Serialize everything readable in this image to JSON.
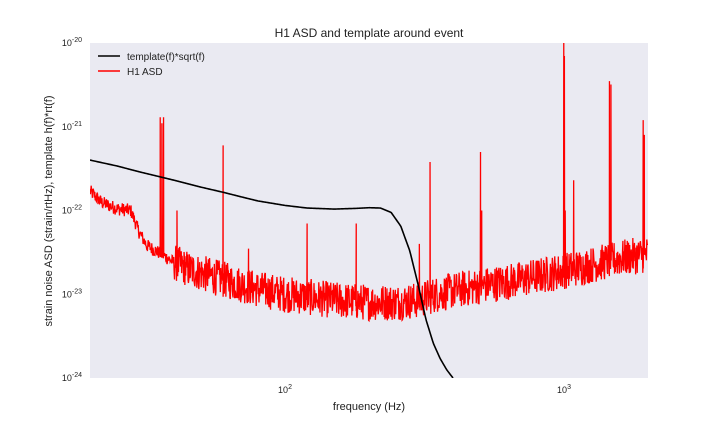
{
  "chart_data": {
    "type": "line",
    "title": "H1 ASD and template around event",
    "xlabel": "frequency (Hz)",
    "ylabel": "strain noise ASD (strain/rtHz), template h(f)*rt(f)",
    "xscale": "log",
    "yscale": "log",
    "xlim": [
      20,
      2000
    ],
    "ylim": [
      1e-24,
      1e-20
    ],
    "grid": false,
    "legend_position": "top-left",
    "background_color": "#eaeaf2",
    "x_ticks": [
      {
        "value": 100,
        "base": "10",
        "exp": "2"
      },
      {
        "value": 1000,
        "base": "10",
        "exp": "3"
      }
    ],
    "y_ticks": [
      {
        "value": 1e-20,
        "base": "10",
        "exp": "-20"
      },
      {
        "value": 1e-21,
        "base": "10",
        "exp": "-21"
      },
      {
        "value": 1e-22,
        "base": "10",
        "exp": "-22"
      },
      {
        "value": 1e-23,
        "base": "10",
        "exp": "-23"
      },
      {
        "value": 1e-24,
        "base": "10",
        "exp": "-24"
      }
    ],
    "series": [
      {
        "name": "template(f)*sqrt(f)",
        "color": "#000000",
        "x": [
          20,
          25,
          30,
          40,
          50,
          60,
          70,
          80,
          100,
          120,
          150,
          180,
          200,
          220,
          240,
          260,
          280,
          300,
          320,
          340,
          360,
          380,
          400
        ],
        "y": [
          4e-22,
          3.4e-22,
          2.9e-22,
          2.3e-22,
          1.9e-22,
          1.65e-22,
          1.45e-22,
          1.3e-22,
          1.15e-22,
          1.07e-22,
          1.04e-22,
          1.06e-22,
          1.08e-22,
          1.07e-22,
          9.5e-23,
          6.5e-23,
          3.3e-23,
          1.3e-23,
          5e-24,
          2.6e-24,
          1.7e-24,
          1.25e-24,
          1e-24
        ]
      },
      {
        "name": "H1 ASD",
        "color": "#ff0000",
        "baseline": {
          "x": [
            20,
            22,
            25,
            28,
            30,
            32,
            35,
            40,
            45,
            50,
            60,
            70,
            80,
            100,
            130,
            150,
            200,
            250,
            300,
            350,
            400,
            500,
            700,
            1000,
            1300,
            1600,
            2000
          ],
          "y": [
            1.7e-22,
            1.25e-22,
            1.05e-22,
            1e-22,
            5.5e-23,
            3.8e-23,
            3.2e-23,
            2.4e-23,
            2e-23,
            1.8e-23,
            1.5e-23,
            1.3e-23,
            1.15e-23,
            1e-23,
            9e-24,
            8.5e-24,
            8e-24,
            8e-24,
            8.5e-24,
            1e-23,
            1.1e-23,
            1.25e-23,
            1.5e-23,
            1.9e-23,
            2.3e-23,
            2.7e-23,
            3e-23
          ]
        },
        "peaks": [
          {
            "f": 35.7,
            "y": 1.3e-21
          },
          {
            "f": 36.2,
            "y": 1.1e-21
          },
          {
            "f": 36.7,
            "y": 1.3e-21
          },
          {
            "f": 41,
            "y": 1e-22
          },
          {
            "f": 60,
            "y": 6e-22
          },
          {
            "f": 74,
            "y": 3.5e-23
          },
          {
            "f": 120,
            "y": 7e-23
          },
          {
            "f": 180,
            "y": 7e-23
          },
          {
            "f": 303,
            "y": 4e-23
          },
          {
            "f": 331,
            "y": 3.8e-22
          },
          {
            "f": 502,
            "y": 5e-22
          },
          {
            "f": 507,
            "y": 1e-22
          },
          {
            "f": 998,
            "y": 1e-20
          },
          {
            "f": 1003,
            "y": 7e-21
          },
          {
            "f": 1010,
            "y": 1e-22
          },
          {
            "f": 1083,
            "y": 2.3e-22
          },
          {
            "f": 1455,
            "y": 3.5e-21
          },
          {
            "f": 1473,
            "y": 3.2e-21
          },
          {
            "f": 1922,
            "y": 1.2e-21
          },
          {
            "f": 1940,
            "y": 8e-22
          }
        ]
      }
    ]
  }
}
